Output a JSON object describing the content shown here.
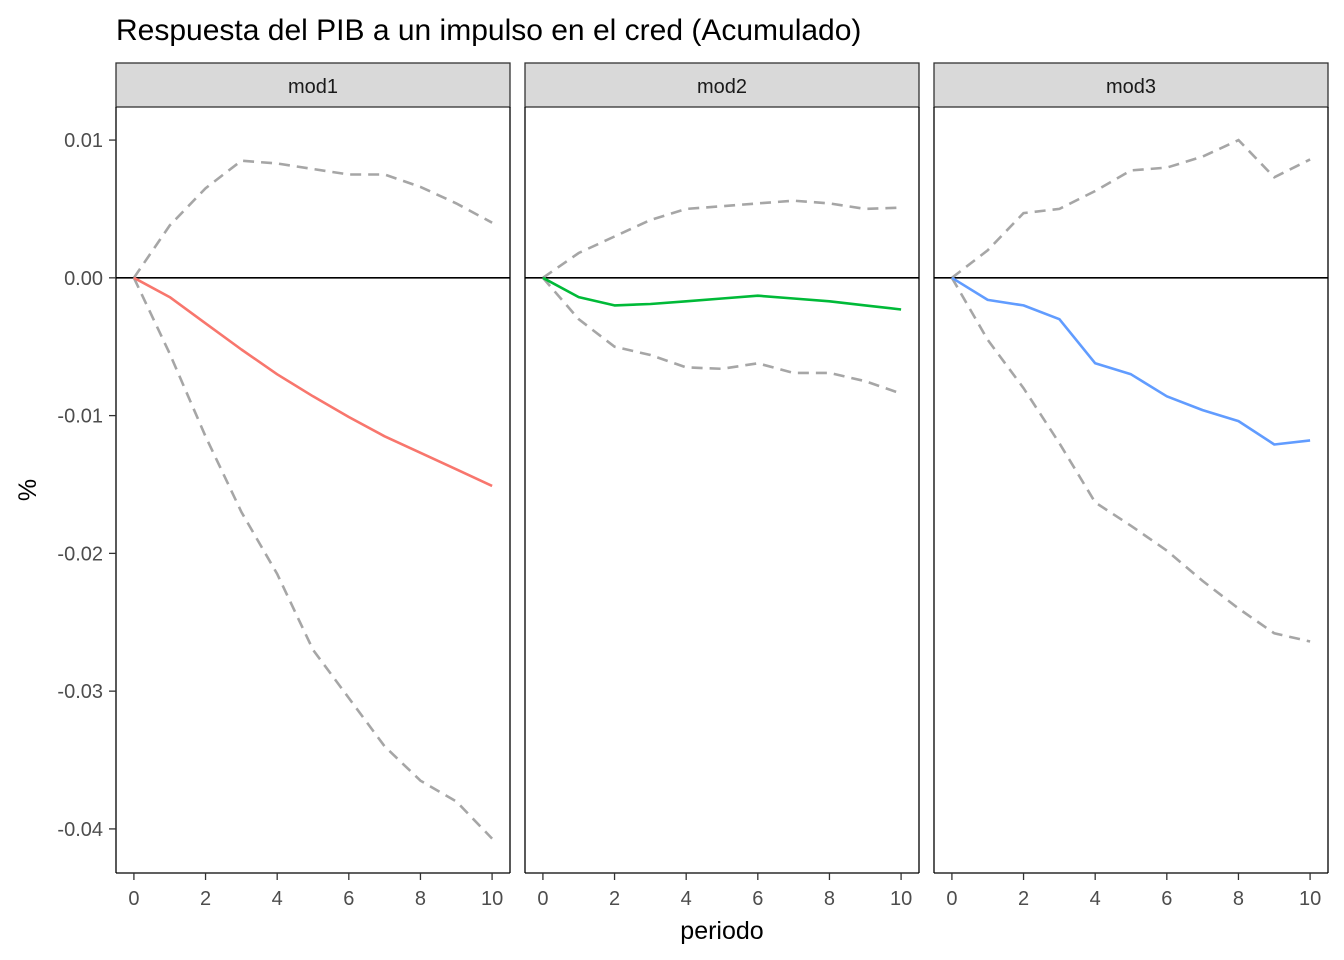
{
  "chart_data": {
    "type": "line",
    "title": "Respuesta del PIB a un impulso en el cred (Acumulado)",
    "xlabel": "periodo",
    "ylabel": "%",
    "xlim": [
      -0.5,
      10.5
    ],
    "ylim": [
      -0.0432,
      0.0124
    ],
    "x_ticks": [
      0,
      2,
      4,
      6,
      8,
      10
    ],
    "x_tick_labels": [
      "0",
      "2",
      "4",
      "6",
      "8",
      "10"
    ],
    "y_ticks": [
      0.01,
      0.0,
      -0.01,
      -0.02,
      -0.03,
      -0.04
    ],
    "y_tick_labels": [
      "0.01",
      "0.00",
      "-0.01",
      "-0.02",
      "-0.03",
      "-0.04"
    ],
    "reference_line": 0,
    "grid": false,
    "band_color": "#a6a6a6",
    "strip_fill": "#d9d9d9",
    "x": [
      0,
      1,
      2,
      3,
      4,
      5,
      6,
      7,
      8,
      9,
      10
    ],
    "panels": [
      {
        "label": "mod1",
        "color": "#f8766d",
        "response": [
          0,
          -0.0014,
          -0.0033,
          -0.0052,
          -0.007,
          -0.0086,
          -0.0101,
          -0.0115,
          -0.0127,
          -0.0139,
          -0.0151
        ],
        "upper": [
          0,
          0.0038,
          0.0065,
          0.0085,
          0.0083,
          0.0079,
          0.0075,
          0.0075,
          0.0066,
          0.0054,
          0.004
        ],
        "lower": [
          0,
          -0.0055,
          -0.0115,
          -0.017,
          -0.0215,
          -0.027,
          -0.0305,
          -0.034,
          -0.0365,
          -0.038,
          -0.0407
        ]
      },
      {
        "label": "mod2",
        "color": "#00ba38",
        "response": [
          0,
          -0.0014,
          -0.002,
          -0.0019,
          -0.0017,
          -0.0015,
          -0.0013,
          -0.0015,
          -0.0017,
          -0.002,
          -0.0023
        ],
        "upper": [
          0,
          0.0018,
          0.003,
          0.0042,
          0.005,
          0.0052,
          0.0054,
          0.0056,
          0.0054,
          0.005,
          0.0051
        ],
        "lower": [
          0,
          -0.003,
          -0.005,
          -0.0056,
          -0.0065,
          -0.0066,
          -0.0062,
          -0.0069,
          -0.0069,
          -0.0075,
          -0.0084
        ]
      },
      {
        "label": "mod3",
        "color": "#619cff",
        "response": [
          0,
          -0.0016,
          -0.002,
          -0.003,
          -0.0062,
          -0.007,
          -0.0086,
          -0.0096,
          -0.0104,
          -0.0121,
          -0.0118
        ],
        "upper": [
          0,
          0.002,
          0.0047,
          0.005,
          0.0063,
          0.0078,
          0.008,
          0.0088,
          0.01,
          0.0073,
          0.0086
        ],
        "lower": [
          0,
          -0.0045,
          -0.008,
          -0.012,
          -0.0163,
          -0.018,
          -0.0198,
          -0.022,
          -0.024,
          -0.0258,
          -0.0264
        ]
      }
    ]
  }
}
